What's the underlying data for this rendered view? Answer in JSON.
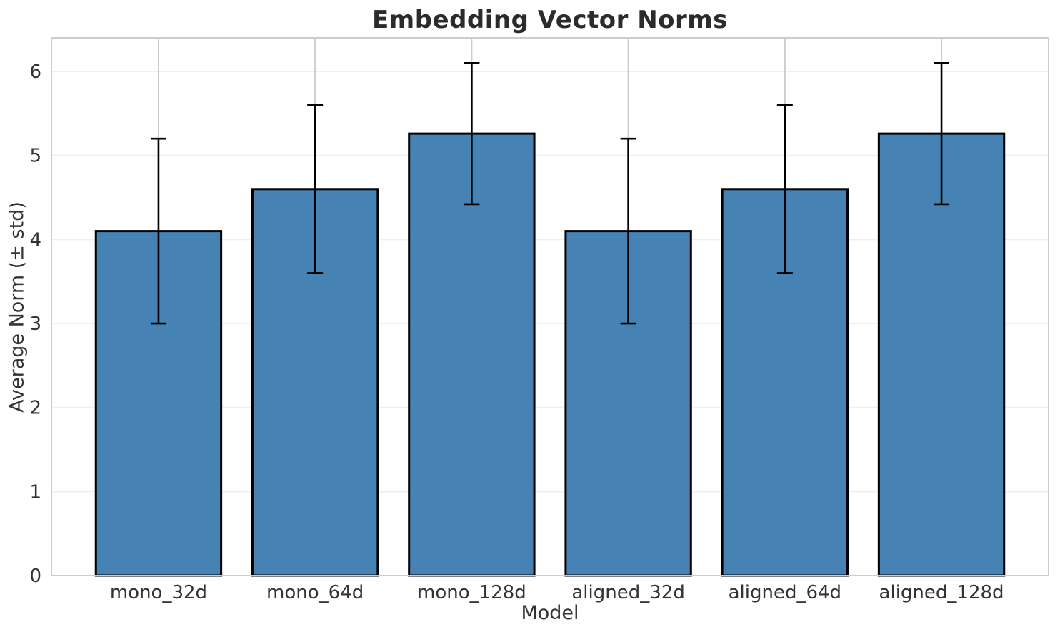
{
  "chart_data": {
    "type": "bar",
    "title": "Embedding Vector Norms",
    "xlabel": "Model",
    "ylabel": "Average Norm (± std)",
    "categories": [
      "mono_32d",
      "mono_64d",
      "mono_128d",
      "aligned_32d",
      "aligned_64d",
      "aligned_128d"
    ],
    "values": [
      4.1,
      4.6,
      5.26,
      4.1,
      4.6,
      5.26
    ],
    "errors": [
      1.1,
      1.0,
      0.84,
      1.1,
      1.0,
      0.84
    ],
    "ytick_labels": [
      "0",
      "1",
      "2",
      "3",
      "4",
      "5",
      "6"
    ],
    "yticks": [
      0,
      1,
      2,
      3,
      4,
      5,
      6
    ],
    "ylim": [
      0,
      6.4
    ],
    "xlim": [
      -0.684,
      5.684
    ],
    "bar_width": 0.8,
    "grid": true,
    "legend": "none",
    "colors": {
      "bar_fill": "#4682b4",
      "bar_edge": "#000000",
      "error_bar": "#000000",
      "grid_horizontal": "#efefef",
      "grid_vertical": "#cccccc",
      "spine": "#cccccc",
      "title_text": "#2b2b2b",
      "label_text": "#333333",
      "background": "#ffffff"
    }
  }
}
